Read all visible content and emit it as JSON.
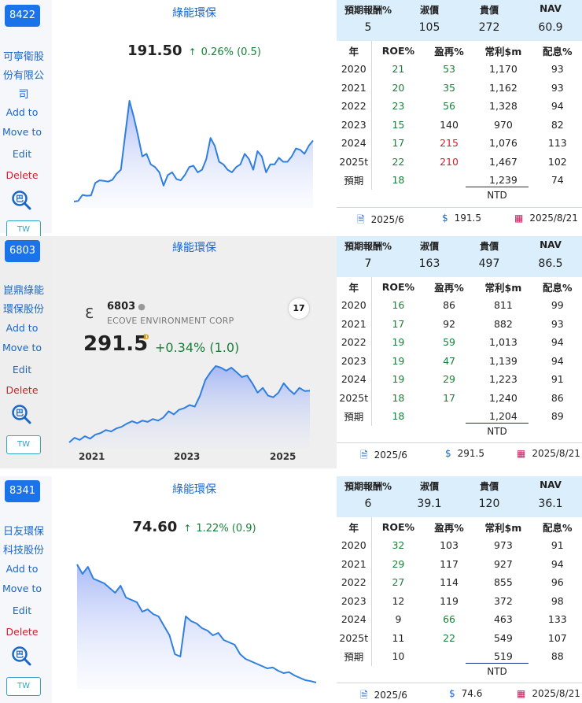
{
  "cards": [
    {
      "code": "8422",
      "company_name": [
        "可寧衛股",
        "份有限公",
        "司"
      ],
      "actions": {
        "add": "Add to",
        "move": "Move to",
        "edit": "Edit",
        "delete": "Delete",
        "tw": "TW"
      },
      "chart_title": "綠能環保",
      "price": "191.50",
      "change": "0.26% (0.5)",
      "header": {
        "labels": [
          "預期報酬%",
          "淑價",
          "貴價",
          "NAV"
        ],
        "values": [
          "5",
          "105",
          "272",
          "60.9"
        ]
      },
      "table": {
        "columns": [
          "年",
          "ROE%",
          "盈再%",
          "常利$m",
          "配息%"
        ],
        "rows": [
          [
            "2020",
            "21",
            "53",
            "1,170",
            "93"
          ],
          [
            "2021",
            "20",
            "35",
            "1,162",
            "93"
          ],
          [
            "2022",
            "23",
            "56",
            "1,328",
            "94"
          ],
          [
            "2023",
            "15",
            "140",
            "970",
            "82"
          ],
          [
            "2024",
            "17",
            "215",
            "1,076",
            "113"
          ],
          [
            "2025t",
            "22",
            "210",
            "1,467",
            "102"
          ],
          [
            "預期",
            "18",
            "",
            "1,239",
            "74"
          ]
        ]
      },
      "currency": "NTD",
      "footer": {
        "period": "2025/6",
        "price": "191.5",
        "date": "2025/8/21"
      }
    },
    {
      "code": "6803",
      "company_name": [
        "崑鼎綠能",
        "環保股份"
      ],
      "actions": {
        "add": "Add to",
        "move": "Move to",
        "edit": "Edit",
        "delete": "Delete",
        "tw": "TW"
      },
      "chart_title": "綠能環保",
      "widget": {
        "symbol": "6803",
        "name": "ECOVE ENVIRONMENT CORP",
        "price": "291.5",
        "price_flag": "D",
        "change": "+0.34% (1.0)",
        "years": [
          "2021",
          "2023",
          "2025"
        ]
      },
      "header": {
        "labels": [
          "預期報酬%",
          "淑價",
          "貴價",
          "NAV"
        ],
        "values": [
          "7",
          "163",
          "497",
          "86.5"
        ]
      },
      "table": {
        "columns": [
          "年",
          "ROE%",
          "盈再%",
          "常利$m",
          "配息%"
        ],
        "rows": [
          [
            "2020",
            "16",
            "86",
            "811",
            "99"
          ],
          [
            "2021",
            "17",
            "92",
            "882",
            "93"
          ],
          [
            "2022",
            "19",
            "59",
            "1,013",
            "94"
          ],
          [
            "2023",
            "19",
            "47",
            "1,139",
            "94"
          ],
          [
            "2024",
            "19",
            "29",
            "1,223",
            "91"
          ],
          [
            "2025t",
            "18",
            "17",
            "1,240",
            "86"
          ],
          [
            "預期",
            "18",
            "",
            "1,204",
            "89"
          ]
        ]
      },
      "currency": "NTD",
      "footer": {
        "period": "2025/6",
        "price": "291.5",
        "date": "2025/8/21"
      }
    },
    {
      "code": "8341",
      "company_name": [
        "日友環保",
        "科技股份"
      ],
      "actions": {
        "add": "Add to",
        "move": "Move to",
        "edit": "Edit",
        "delete": "Delete",
        "tw": "TW"
      },
      "chart_title": "綠能環保",
      "price": "74.60",
      "change": "1.22% (0.9)",
      "header": {
        "labels": [
          "預期報酬%",
          "淑價",
          "貴價",
          "NAV"
        ],
        "values": [
          "6",
          "39.1",
          "120",
          "36.1"
        ]
      },
      "table": {
        "columns": [
          "年",
          "ROE%",
          "盈再%",
          "常利$m",
          "配息%"
        ],
        "rows": [
          [
            "2020",
            "32",
            "103",
            "973",
            "91"
          ],
          [
            "2021",
            "29",
            "117",
            "927",
            "94"
          ],
          [
            "2022",
            "27",
            "114",
            "855",
            "96"
          ],
          [
            "2023",
            "12",
            "119",
            "372",
            "98"
          ],
          [
            "2024",
            "9",
            "66",
            "463",
            "133"
          ],
          [
            "2025t",
            "11",
            "22",
            "549",
            "107"
          ],
          [
            "預期",
            "10",
            "",
            "519",
            "88"
          ]
        ]
      },
      "currency": "NTD",
      "footer": {
        "period": "2025/6",
        "price": "74.6",
        "date": "2025/8/21"
      }
    }
  ],
  "colors": {
    "accent": "#1a73e8",
    "up": "#188038",
    "down": "#d0202f",
    "header_bg": "#dbeefb",
    "line": "#2f7fe0"
  },
  "chart_data": [
    {
      "type": "area",
      "series": [
        {
          "values": [
            1.0,
            1.2,
            3.5,
            3.2,
            3.3,
            8.0,
            9.0,
            8.8,
            8.5,
            9.2,
            11.5,
            13.0,
            26.0,
            39.0,
            33.0,
            26.0,
            18.0,
            19.0,
            15.0,
            14.0,
            12.0,
            7.0,
            11.0,
            12.0,
            9.5,
            9.0,
            11.0,
            14.0,
            14.5,
            12.0,
            13.0,
            17.0,
            25.0,
            22.0,
            16.0,
            15.0,
            13.0,
            12.0,
            14.0,
            15.0,
            19.0,
            17.0,
            13.0,
            20.0,
            18.0,
            12.0,
            15.0,
            15.0,
            17.5,
            16.0,
            16.0,
            18.0,
            21.0,
            20.5,
            19.0,
            22.0,
            24.0
          ]
        }
      ]
    },
    {
      "type": "area",
      "series": [
        {
          "values": [
            1.0,
            2.5,
            1.8,
            3.0,
            2.2,
            3.5,
            4.0,
            5.0,
            4.5,
            5.5,
            6.0,
            7.0,
            7.8,
            7.2,
            8.0,
            7.6,
            8.5,
            8.0,
            9.0,
            11.0,
            10.0,
            11.5,
            12.0,
            13.0,
            12.5,
            16.0,
            21.0,
            23.5,
            25.5,
            25.0,
            24.0,
            25.0,
            23.5,
            22.0,
            22.5,
            20.0,
            17.0,
            18.5,
            16.0,
            15.5,
            17.0,
            20.0,
            18.0,
            16.5,
            18.5,
            17.5,
            17.6
          ]
        }
      ]
    },
    {
      "type": "area",
      "series": [
        {
          "values": [
            26.0,
            24.0,
            25.5,
            23.0,
            22.5,
            22.0,
            21.0,
            20.0,
            21.5,
            19.0,
            18.5,
            18.0,
            16.0,
            16.5,
            15.5,
            15.0,
            13.0,
            11.0,
            7.0,
            6.5,
            15.0,
            14.0,
            13.5,
            12.5,
            12.0,
            11.0,
            11.5,
            10.0,
            9.5,
            9.0,
            7.0,
            6.0,
            5.5,
            5.0,
            4.5,
            4.0,
            4.2,
            3.5,
            3.0,
            3.2,
            2.5,
            2.0,
            1.5,
            1.3,
            1.0
          ]
        }
      ]
    }
  ]
}
